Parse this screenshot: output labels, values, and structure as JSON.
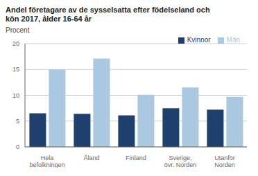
{
  "chart_data": {
    "type": "bar",
    "title": "Andel företagare av de sysselsatta efter födelseland och\nkön 2017, ålder 16-64 år",
    "ylabel": "Procent",
    "categories": [
      "Hela\nbefolkningen",
      "Åland",
      "Finland",
      "Sverige,\növr. Norden",
      "Utanför\nNorden"
    ],
    "series": [
      {
        "name": "Kvinnor",
        "color": "#1f3f6e",
        "values": [
          6.5,
          6.4,
          6.1,
          7.5,
          7.2
        ]
      },
      {
        "name": "Män",
        "color": "#aac8e0",
        "values": [
          15.0,
          17.1,
          10.1,
          11.5,
          9.7
        ]
      }
    ],
    "ylim": [
      0,
      20
    ],
    "yticks": [
      0,
      5,
      10,
      15,
      20
    ],
    "grid": true,
    "legend": "upper right"
  }
}
